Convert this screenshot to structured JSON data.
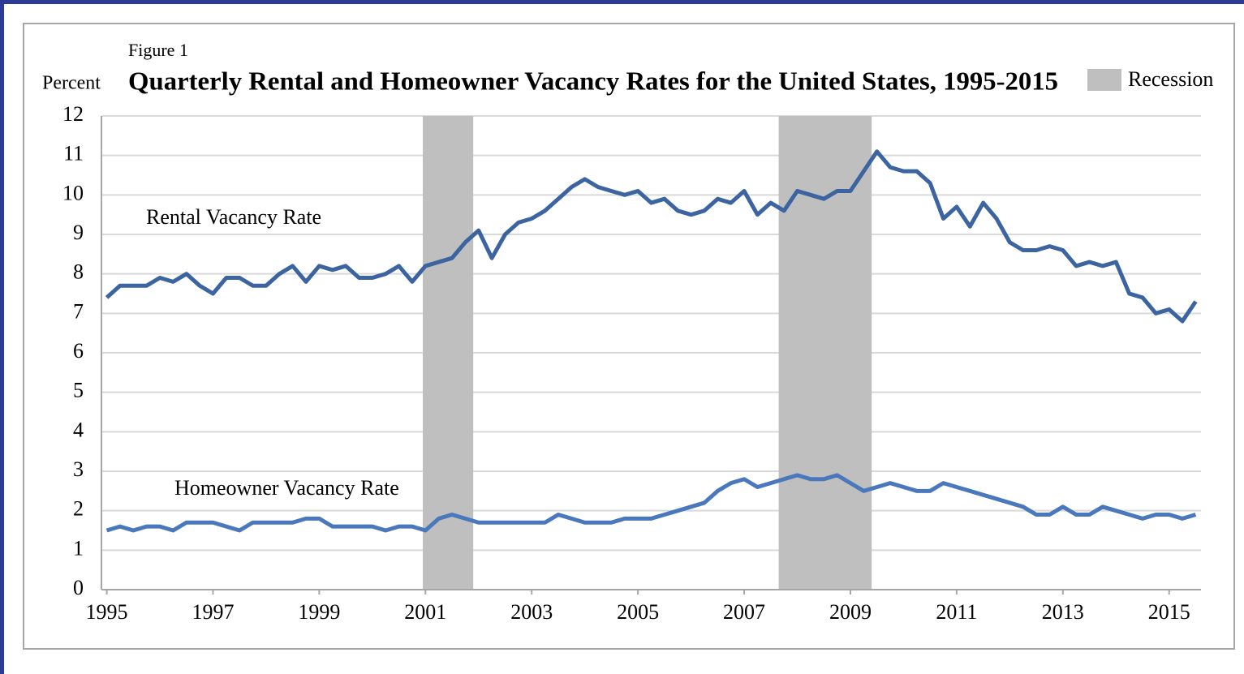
{
  "chart_data": {
    "type": "line",
    "figure_label": "Figure 1",
    "ylabel": "Percent",
    "title": "Quarterly Rental and Homeowner Vacancy Rates for the United States, 1995-2015",
    "recession_label": "Recession",
    "recession_color": "#bfbfbf",
    "recessions": [
      [
        2000.95,
        2001.9
      ],
      [
        2007.65,
        2009.4
      ]
    ],
    "x": [
      1995,
      1995.25,
      1995.5,
      1995.75,
      1996,
      1996.25,
      1996.5,
      1996.75,
      1997,
      1997.25,
      1997.5,
      1997.75,
      1998,
      1998.25,
      1998.5,
      1998.75,
      1999,
      1999.25,
      1999.5,
      1999.75,
      2000,
      2000.25,
      2000.5,
      2000.75,
      2001,
      2001.25,
      2001.5,
      2001.75,
      2002,
      2002.25,
      2002.5,
      2002.75,
      2003,
      2003.25,
      2003.5,
      2003.75,
      2004,
      2004.25,
      2004.5,
      2004.75,
      2005,
      2005.25,
      2005.5,
      2005.75,
      2006,
      2006.25,
      2006.5,
      2006.75,
      2007,
      2007.25,
      2007.5,
      2007.75,
      2008,
      2008.25,
      2008.5,
      2008.75,
      2009,
      2009.25,
      2009.5,
      2009.75,
      2010,
      2010.25,
      2010.5,
      2010.75,
      2011,
      2011.25,
      2011.5,
      2011.75,
      2012,
      2012.25,
      2012.5,
      2012.75,
      2013,
      2013.25,
      2013.5,
      2013.75,
      2014,
      2014.25,
      2014.5,
      2014.75,
      2015,
      2015.25,
      2015.5
    ],
    "series": [
      {
        "name": "Rental Vacancy Rate",
        "color": "#3c64a0",
        "values": [
          7.4,
          7.7,
          7.7,
          7.7,
          7.9,
          7.8,
          8.0,
          7.7,
          7.5,
          7.9,
          7.9,
          7.7,
          7.7,
          8.0,
          8.2,
          7.8,
          8.2,
          8.1,
          8.2,
          7.9,
          7.9,
          8.0,
          8.2,
          7.8,
          8.2,
          8.3,
          8.4,
          8.8,
          9.1,
          8.4,
          9.0,
          9.3,
          9.4,
          9.6,
          9.9,
          10.2,
          10.4,
          10.2,
          10.1,
          10.0,
          10.1,
          9.8,
          9.9,
          9.6,
          9.5,
          9.6,
          9.9,
          9.8,
          10.1,
          9.5,
          9.8,
          9.6,
          10.1,
          10.0,
          9.9,
          10.1,
          10.1,
          10.6,
          11.1,
          10.7,
          10.6,
          10.6,
          10.3,
          9.4,
          9.7,
          9.2,
          9.8,
          9.4,
          8.8,
          8.6,
          8.6,
          8.7,
          8.6,
          8.2,
          8.3,
          8.2,
          8.3,
          7.5,
          7.4,
          7.0,
          7.1,
          6.8,
          7.3
        ]
      },
      {
        "name": "Homeowner Vacancy Rate",
        "color": "#4a78bd",
        "values": [
          1.5,
          1.6,
          1.5,
          1.6,
          1.6,
          1.5,
          1.7,
          1.7,
          1.7,
          1.6,
          1.5,
          1.7,
          1.7,
          1.7,
          1.7,
          1.8,
          1.8,
          1.6,
          1.6,
          1.6,
          1.6,
          1.5,
          1.6,
          1.6,
          1.5,
          1.8,
          1.9,
          1.8,
          1.7,
          1.7,
          1.7,
          1.7,
          1.7,
          1.7,
          1.9,
          1.8,
          1.7,
          1.7,
          1.7,
          1.8,
          1.8,
          1.8,
          1.9,
          2.0,
          2.1,
          2.2,
          2.5,
          2.7,
          2.8,
          2.6,
          2.7,
          2.8,
          2.9,
          2.8,
          2.8,
          2.9,
          2.7,
          2.5,
          2.6,
          2.7,
          2.6,
          2.5,
          2.5,
          2.7,
          2.6,
          2.5,
          2.4,
          2.3,
          2.2,
          2.1,
          1.9,
          1.9,
          2.1,
          1.9,
          1.9,
          2.1,
          2.0,
          1.9,
          1.8,
          1.9,
          1.9,
          1.8,
          1.9
        ]
      }
    ],
    "xlim": [
      1994.9,
      2015.6
    ],
    "xticks": [
      1995,
      1997,
      1999,
      2001,
      2003,
      2005,
      2007,
      2009,
      2011,
      2013,
      2015
    ],
    "ylim": [
      0,
      12
    ],
    "yticks": [
      0,
      1,
      2,
      3,
      4,
      5,
      6,
      7,
      8,
      9,
      10,
      11,
      12
    ],
    "grid": true
  }
}
